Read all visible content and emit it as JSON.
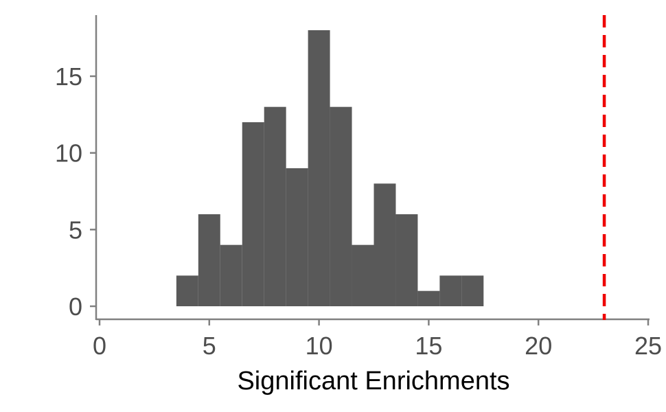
{
  "chart_data": {
    "type": "bar",
    "title": "",
    "xlabel": "Significant Enrichments",
    "ylabel": "",
    "xlim": [
      0,
      25
    ],
    "ylim": [
      0,
      18
    ],
    "x_ticks": [
      0,
      5,
      10,
      15,
      20,
      25
    ],
    "y_ticks": [
      0,
      5,
      10,
      15
    ],
    "bin_width": 1,
    "bins": [
      {
        "x": 4,
        "count": 2
      },
      {
        "x": 5,
        "count": 6
      },
      {
        "x": 6,
        "count": 4
      },
      {
        "x": 7,
        "count": 12
      },
      {
        "x": 8,
        "count": 13
      },
      {
        "x": 9,
        "count": 9
      },
      {
        "x": 10,
        "count": 18
      },
      {
        "x": 11,
        "count": 13
      },
      {
        "x": 12,
        "count": 4
      },
      {
        "x": 13,
        "count": 8
      },
      {
        "x": 14,
        "count": 6
      },
      {
        "x": 15,
        "count": 1
      },
      {
        "x": 16,
        "count": 2
      },
      {
        "x": 17,
        "count": 2
      }
    ],
    "reference_line": {
      "x": 23,
      "style": "dashed"
    },
    "grid": false,
    "colors": {
      "bars": "#595959",
      "reference_line": "#ee0000",
      "axis": "#808080"
    }
  }
}
